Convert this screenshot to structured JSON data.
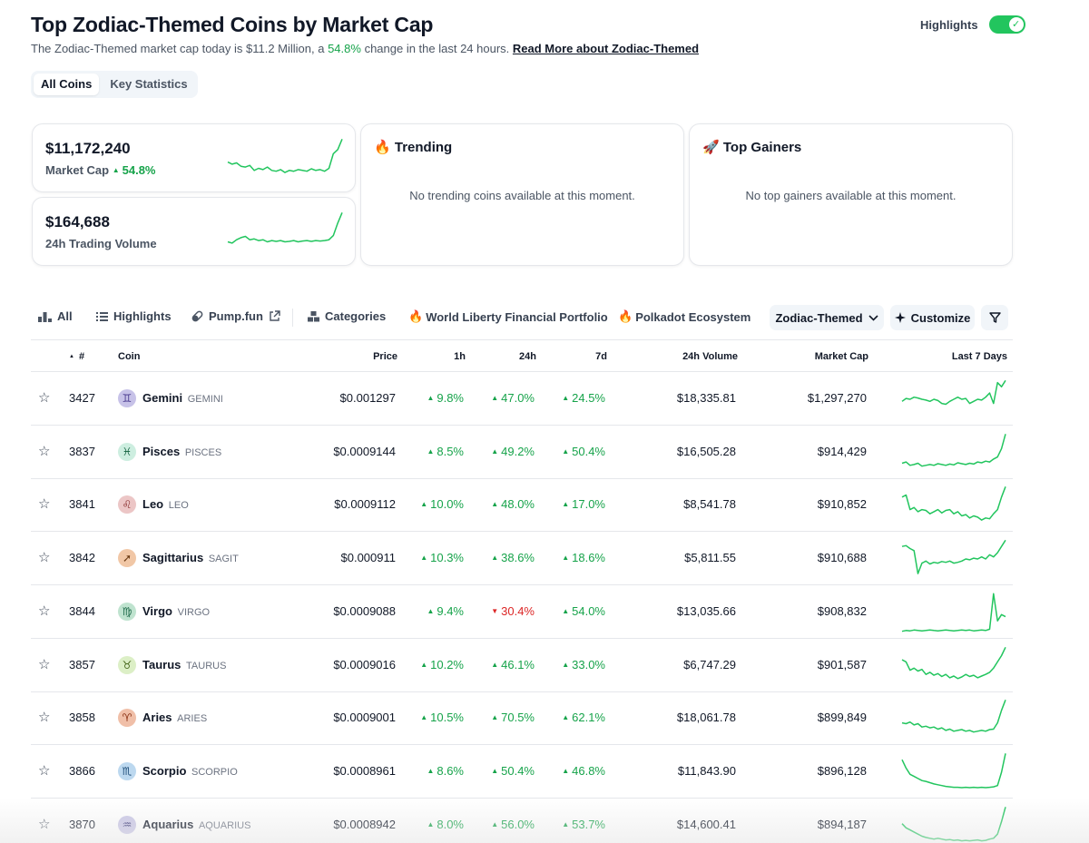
{
  "header": {
    "title": "Top Zodiac-Themed Coins by Market Cap",
    "subtitle_prefix": "The Zodiac-Themed market cap today is $11.2 Million, a ",
    "subtitle_change": "54.8%",
    "subtitle_suffix": " change in the last 24 hours. ",
    "read_more": "Read More about Zodiac-Themed",
    "highlights_label": "Highlights",
    "highlights_on": true
  },
  "view_tabs": [
    "All Coins",
    "Key Statistics"
  ],
  "stats": {
    "market_cap": {
      "value": "$11,172,240",
      "label": "Market Cap",
      "change": "54.8%"
    },
    "volume": {
      "value": "$164,688",
      "label": "24h Trading Volume"
    }
  },
  "trending": {
    "title": "Trending",
    "empty": "No trending coins available at this moment."
  },
  "gainers": {
    "title": "Top Gainers",
    "empty": "No top gainers available at this moment."
  },
  "filters": {
    "all": "All",
    "highlights": "Highlights",
    "pumpfun": "Pump.fun",
    "categories": "Categories",
    "wlf": "World Liberty Financial Portfolio",
    "polkadot": "Polkadot Ecosystem",
    "category_select": "Zodiac-Themed",
    "customize": "Customize"
  },
  "table": {
    "headers": {
      "rank": "#",
      "coin": "Coin",
      "price": "Price",
      "h1": "1h",
      "h24": "24h",
      "d7": "7d",
      "volume": "24h Volume",
      "mcap": "Market Cap",
      "last7": "Last 7 Days"
    },
    "rows": [
      {
        "rank": "3427",
        "name": "Gemini",
        "symbol": "GEMINI",
        "glyph": "♊",
        "icon_bg": "#c7c2e8",
        "icon_fg": "#4c3d91",
        "price": "$0.001297",
        "h1": "9.8%",
        "h24": "47.0%",
        "d7": "24.5%",
        "dir": [
          "up",
          "up",
          "up"
        ],
        "volume": "$18,335.81",
        "mcap": "$1,297,270",
        "spark": [
          0.55,
          0.48,
          0.5,
          0.45,
          0.47,
          0.5,
          0.52,
          0.55,
          0.5,
          0.53,
          0.6,
          0.62,
          0.55,
          0.5,
          0.45,
          0.5,
          0.48,
          0.6,
          0.55,
          0.5,
          0.52,
          0.45,
          0.35,
          0.6,
          0.1,
          0.2,
          0.05
        ]
      },
      {
        "rank": "3837",
        "name": "Pisces",
        "symbol": "PISCES",
        "glyph": "♓",
        "icon_bg": "#cdeee0",
        "icon_fg": "#1f6b4a",
        "price": "$0.0009144",
        "h1": "8.5%",
        "h24": "49.2%",
        "d7": "50.4%",
        "dir": [
          "up",
          "up",
          "up"
        ],
        "volume": "$16,505.28",
        "mcap": "$914,429",
        "spark": [
          0.75,
          0.72,
          0.8,
          0.78,
          0.75,
          0.82,
          0.8,
          0.78,
          0.8,
          0.76,
          0.78,
          0.8,
          0.77,
          0.79,
          0.74,
          0.76,
          0.78,
          0.75,
          0.77,
          0.72,
          0.74,
          0.7,
          0.72,
          0.65,
          0.6,
          0.4,
          0.05
        ]
      },
      {
        "rank": "3841",
        "name": "Leo",
        "symbol": "LEO",
        "glyph": "♌",
        "icon_bg": "#ecc6c6",
        "icon_fg": "#8a2f2f",
        "price": "$0.0009112",
        "h1": "10.0%",
        "h24": "48.0%",
        "d7": "17.0%",
        "dir": [
          "up",
          "up",
          "up"
        ],
        "volume": "$8,541.78",
        "mcap": "$910,852",
        "spark": [
          0.3,
          0.25,
          0.6,
          0.55,
          0.65,
          0.6,
          0.62,
          0.7,
          0.65,
          0.6,
          0.68,
          0.62,
          0.6,
          0.7,
          0.65,
          0.75,
          0.72,
          0.8,
          0.75,
          0.78,
          0.85,
          0.8,
          0.82,
          0.7,
          0.6,
          0.3,
          0.05
        ]
      },
      {
        "rank": "3842",
        "name": "Sagittarius",
        "symbol": "SAGIT",
        "glyph": "➚",
        "icon_bg": "#f1c7a6",
        "icon_fg": "#6b3a12",
        "price": "$0.000911",
        "h1": "10.3%",
        "h24": "38.6%",
        "d7": "18.6%",
        "dir": [
          "up",
          "up",
          "up"
        ],
        "volume": "$5,811.55",
        "mcap": "$910,688",
        "spark": [
          0.2,
          0.18,
          0.25,
          0.3,
          0.85,
          0.6,
          0.55,
          0.62,
          0.58,
          0.6,
          0.56,
          0.58,
          0.55,
          0.6,
          0.58,
          0.55,
          0.5,
          0.52,
          0.48,
          0.5,
          0.45,
          0.5,
          0.4,
          0.45,
          0.35,
          0.2,
          0.05
        ]
      },
      {
        "rank": "3844",
        "name": "Virgo",
        "symbol": "VIRGO",
        "glyph": "♍",
        "icon_bg": "#bfe3cf",
        "icon_fg": "#1f6b4a",
        "price": "$0.0009088",
        "h1": "9.4%",
        "h24": "30.4%",
        "d7": "54.0%",
        "dir": [
          "up",
          "down",
          "up"
        ],
        "volume": "$13,035.66",
        "mcap": "$908,832",
        "spark": [
          0.95,
          0.93,
          0.94,
          0.92,
          0.93,
          0.94,
          0.93,
          0.92,
          0.93,
          0.94,
          0.93,
          0.92,
          0.93,
          0.94,
          0.93,
          0.92,
          0.93,
          0.92,
          0.94,
          0.93,
          0.92,
          0.93,
          0.9,
          0.05,
          0.7,
          0.55,
          0.6
        ]
      },
      {
        "rank": "3857",
        "name": "Taurus",
        "symbol": "TAURUS",
        "glyph": "♉",
        "icon_bg": "#dcefc6",
        "icon_fg": "#4a6b1f",
        "price": "$0.0009016",
        "h1": "10.2%",
        "h24": "46.1%",
        "d7": "33.0%",
        "dir": [
          "up",
          "up",
          "up"
        ],
        "volume": "$6,747.29",
        "mcap": "$901,587",
        "spark": [
          0.35,
          0.4,
          0.6,
          0.55,
          0.62,
          0.58,
          0.7,
          0.65,
          0.72,
          0.68,
          0.75,
          0.7,
          0.78,
          0.74,
          0.8,
          0.76,
          0.7,
          0.75,
          0.72,
          0.78,
          0.74,
          0.7,
          0.65,
          0.55,
          0.4,
          0.25,
          0.05
        ]
      },
      {
        "rank": "3858",
        "name": "Aries",
        "symbol": "ARIES",
        "glyph": "♈",
        "icon_bg": "#f0bfa8",
        "icon_fg": "#8a2f12",
        "price": "$0.0009001",
        "h1": "10.5%",
        "h24": "70.5%",
        "d7": "62.1%",
        "dir": [
          "up",
          "up",
          "up"
        ],
        "volume": "$18,061.78",
        "mcap": "$899,849",
        "spark": [
          0.6,
          0.62,
          0.58,
          0.65,
          0.62,
          0.7,
          0.68,
          0.72,
          0.7,
          0.75,
          0.72,
          0.78,
          0.75,
          0.8,
          0.78,
          0.76,
          0.8,
          0.78,
          0.82,
          0.8,
          0.78,
          0.8,
          0.76,
          0.75,
          0.6,
          0.3,
          0.05
        ]
      },
      {
        "rank": "3866",
        "name": "Scorpio",
        "symbol": "SCORPIO",
        "glyph": "♏",
        "icon_bg": "#bcd8ef",
        "icon_fg": "#1f4e7a",
        "price": "$0.0008961",
        "h1": "8.6%",
        "h24": "50.4%",
        "d7": "46.8%",
        "dir": [
          "up",
          "up",
          "up"
        ],
        "volume": "$11,843.90",
        "mcap": "$896,128",
        "spark": [
          0.2,
          0.4,
          0.55,
          0.6,
          0.65,
          0.7,
          0.72,
          0.75,
          0.78,
          0.8,
          0.82,
          0.84,
          0.85,
          0.86,
          0.86,
          0.87,
          0.86,
          0.87,
          0.86,
          0.87,
          0.86,
          0.87,
          0.86,
          0.85,
          0.82,
          0.5,
          0.05
        ]
      },
      {
        "rank": "3870",
        "name": "Aquarius",
        "symbol": "AQUARIUS",
        "glyph": "♒",
        "icon_bg": "#c9c6e6",
        "icon_fg": "#3d3a7a",
        "price": "$0.0008942",
        "h1": "8.0%",
        "h24": "56.0%",
        "d7": "53.7%",
        "dir": [
          "up",
          "up",
          "up"
        ],
        "volume": "$14,600.41",
        "mcap": "$894,187",
        "spark": [
          0.45,
          0.55,
          0.6,
          0.65,
          0.7,
          0.75,
          0.78,
          0.8,
          0.82,
          0.8,
          0.82,
          0.84,
          0.83,
          0.85,
          0.84,
          0.86,
          0.85,
          0.86,
          0.85,
          0.84,
          0.86,
          0.85,
          0.82,
          0.8,
          0.7,
          0.4,
          0.05
        ]
      }
    ]
  },
  "sparks": {
    "market_cap": [
      0.6,
      0.65,
      0.62,
      0.7,
      0.72,
      0.68,
      0.8,
      0.75,
      0.78,
      0.72,
      0.8,
      0.82,
      0.78,
      0.85,
      0.8,
      0.82,
      0.78,
      0.8,
      0.82,
      0.76,
      0.8,
      0.78,
      0.82,
      0.75,
      0.4,
      0.3,
      0.05
    ],
    "volume": [
      0.75,
      0.78,
      0.7,
      0.65,
      0.62,
      0.7,
      0.68,
      0.72,
      0.7,
      0.75,
      0.72,
      0.74,
      0.72,
      0.75,
      0.74,
      0.72,
      0.75,
      0.73,
      0.72,
      0.74,
      0.72,
      0.73,
      0.72,
      0.7,
      0.6,
      0.3,
      0.05
    ]
  },
  "colors": {
    "up": "#16a34a",
    "down": "#dc2626",
    "spark": "#22c55e"
  }
}
